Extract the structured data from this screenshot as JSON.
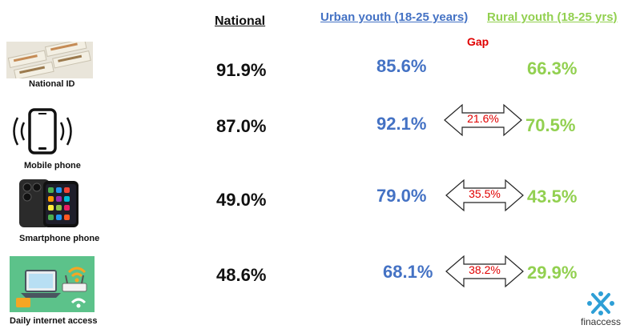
{
  "headers": {
    "national": "National",
    "urban": "Urban youth (18-25 years)",
    "rural": "Rural youth (18-25 yrs)",
    "gap": "Gap"
  },
  "rows": [
    {
      "label": "National ID",
      "icon": "national-id-cards-image",
      "national": "91.9%",
      "urban": "85.6%",
      "rural": "66.3%",
      "gap": ""
    },
    {
      "label": "Mobile phone",
      "icon": "mobile-phone-icon",
      "national": "87.0%",
      "urban": "92.1%",
      "rural": "70.5%",
      "gap": "21.6%"
    },
    {
      "label": "Smartphone phone",
      "icon": "smartphone-icon",
      "national": "49.0%",
      "urban": "79.0%",
      "rural": "43.5%",
      "gap": "35.5%"
    },
    {
      "label": "Daily internet access",
      "icon": "internet-access-illustration",
      "national": "48.6%",
      "urban": "68.1%",
      "rural": "29.9%",
      "gap": "38.2%"
    }
  ],
  "logo": {
    "text": "finaccess",
    "icon": "finaccess-logo"
  },
  "colors": {
    "urban": "#4472c4",
    "rural": "#92d050",
    "gap": "#e00000"
  }
}
